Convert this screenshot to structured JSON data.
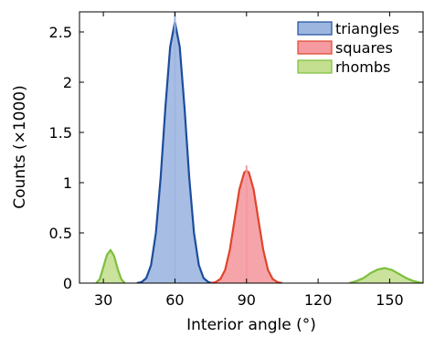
{
  "chart_data": {
    "type": "area",
    "xlabel": "Interior angle (°)",
    "ylabel": "Counts (×1000)",
    "xlim": [
      20,
      164
    ],
    "ylim": [
      0,
      2.7
    ],
    "x_ticks": [
      30,
      60,
      90,
      120,
      150
    ],
    "x_tick_labels": [
      "30",
      "60",
      "90",
      "120",
      "150"
    ],
    "y_ticks": [
      0,
      0.5,
      1,
      1.5,
      2,
      2.5
    ],
    "y_tick_labels": [
      "0",
      "0.5",
      "1",
      "1.5",
      "2",
      "2.5"
    ],
    "grid": false,
    "legend_position": "top-right",
    "series": [
      {
        "name": "triangles",
        "fill": "#9db6e0",
        "stroke": "#1c4d9c",
        "histogram_peak": 2.7,
        "points": [
          [
            44,
            0.0
          ],
          [
            46,
            0.01
          ],
          [
            48,
            0.05
          ],
          [
            50,
            0.18
          ],
          [
            52,
            0.5
          ],
          [
            54,
            1.05
          ],
          [
            56,
            1.75
          ],
          [
            58,
            2.35
          ],
          [
            60,
            2.6
          ],
          [
            62,
            2.35
          ],
          [
            64,
            1.75
          ],
          [
            66,
            1.05
          ],
          [
            68,
            0.5
          ],
          [
            70,
            0.18
          ],
          [
            72,
            0.05
          ],
          [
            74,
            0.01
          ],
          [
            76,
            0.0
          ]
        ]
      },
      {
        "name": "squares",
        "fill": "#f49aa0",
        "stroke": "#e0442c",
        "histogram_peak": 1.17,
        "points": [
          [
            75,
            0.0
          ],
          [
            77,
            0.01
          ],
          [
            79,
            0.04
          ],
          [
            81,
            0.13
          ],
          [
            83,
            0.33
          ],
          [
            85,
            0.63
          ],
          [
            87,
            0.93
          ],
          [
            89,
            1.1
          ],
          [
            90,
            1.12
          ],
          [
            91,
            1.1
          ],
          [
            93,
            0.93
          ],
          [
            95,
            0.63
          ],
          [
            97,
            0.33
          ],
          [
            99,
            0.13
          ],
          [
            101,
            0.04
          ],
          [
            103,
            0.01
          ],
          [
            105,
            0.0
          ]
        ]
      },
      {
        "name": "rhombs",
        "fill": "#c4df90",
        "stroke": "#7cbf3c",
        "points": [
          [
            27,
            0.0
          ],
          [
            28.5,
            0.04
          ],
          [
            30,
            0.16
          ],
          [
            31.5,
            0.28
          ],
          [
            33,
            0.33
          ],
          [
            34.5,
            0.27
          ],
          [
            36,
            0.14
          ],
          [
            37.5,
            0.04
          ],
          [
            39,
            0.0
          ],
          [
            133,
            0.0
          ],
          [
            136,
            0.02
          ],
          [
            139,
            0.05
          ],
          [
            142,
            0.1
          ],
          [
            145,
            0.135
          ],
          [
            148,
            0.15
          ],
          [
            151,
            0.13
          ],
          [
            154,
            0.09
          ],
          [
            157,
            0.05
          ],
          [
            160,
            0.02
          ],
          [
            164,
            0.0
          ]
        ]
      }
    ]
  }
}
